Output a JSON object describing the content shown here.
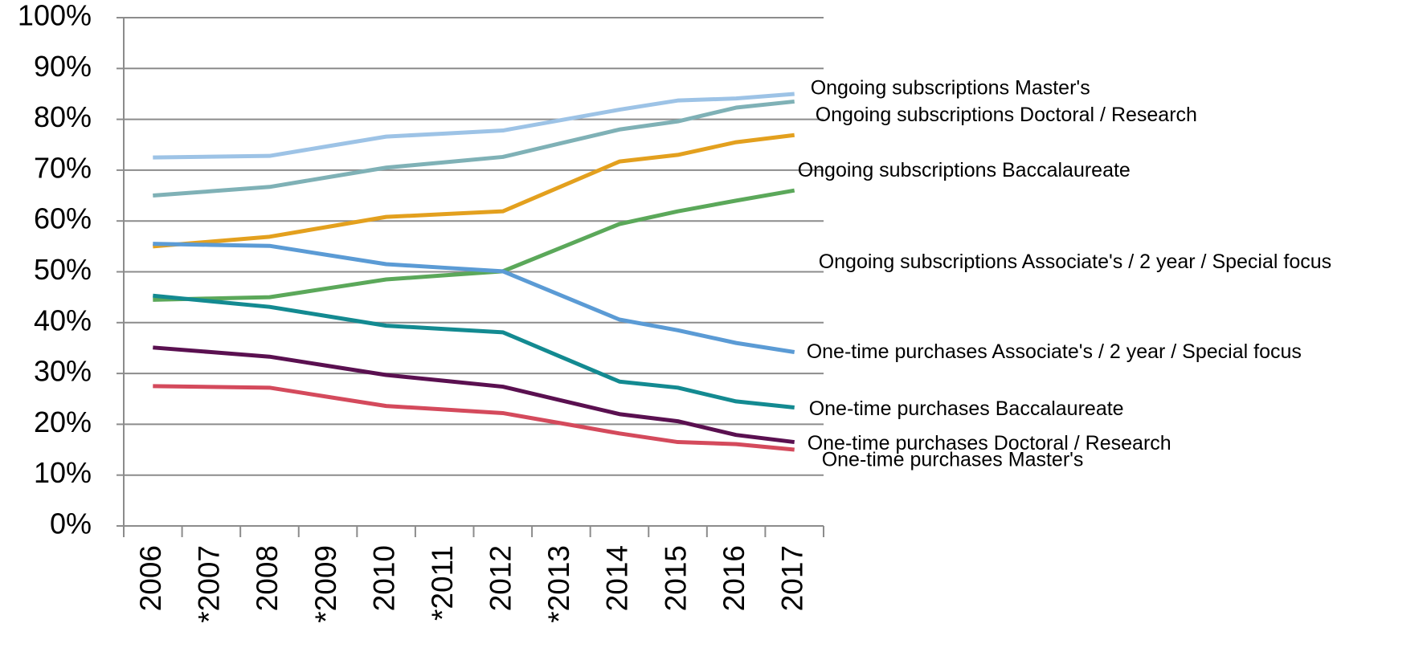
{
  "chart_data": {
    "type": "line",
    "categories": [
      "2006",
      "*2007",
      "2008",
      "*2009",
      "2010",
      "*2011",
      "2012",
      "*2013",
      "2014",
      "2015",
      "2016",
      "2017"
    ],
    "series": [
      {
        "name": "Ongoing subscriptions Master's",
        "color": "#9dc3e6",
        "values": [
          72.5,
          72.65,
          72.8,
          74.7,
          76.6,
          77.2,
          77.8,
          79.85,
          81.9,
          83.7,
          84.1,
          85
        ]
      },
      {
        "name": "Ongoing subscriptions Doctoral / Research",
        "color": "#7fb1b6",
        "values": [
          65,
          65.85,
          66.7,
          68.6,
          70.5,
          71.55,
          72.6,
          75.3,
          78,
          79.6,
          82.3,
          83.5
        ]
      },
      {
        "name": "Ongoing subscriptions Baccalaureate",
        "color": "#e3a01e",
        "values": [
          55,
          55.95,
          56.9,
          58.85,
          60.8,
          61.35,
          61.9,
          66.8,
          71.7,
          73,
          75.5,
          76.9
        ]
      },
      {
        "name": "Ongoing subscriptions Associate's / 2 year / Special focus",
        "color": "#5ba85a",
        "values": [
          44.5,
          44.75,
          45,
          46.75,
          48.5,
          49.3,
          50.1,
          54.75,
          59.4,
          61.9,
          64,
          66
        ]
      },
      {
        "name": "One-time purchases Associate's / 2 year / Special focus",
        "color": "#5b9bd5",
        "values": [
          55.5,
          55.3,
          55.1,
          53.3,
          51.5,
          50.8,
          50.1,
          45.35,
          40.6,
          38.5,
          36,
          34.2
        ]
      },
      {
        "name": "One-time purchases Baccalaureate",
        "color": "#138a91",
        "values": [
          45.3,
          44.2,
          43.1,
          41.25,
          39.4,
          38.75,
          38.1,
          33.25,
          28.4,
          27.2,
          24.5,
          23.3
        ]
      },
      {
        "name": "One-time purchases Doctoral / Research",
        "color": "#5a1050",
        "values": [
          35.1,
          34.2,
          33.3,
          31.5,
          29.7,
          28.55,
          27.4,
          24.7,
          22,
          20.6,
          17.9,
          16.5
        ]
      },
      {
        "name": "One-time purchases Master's",
        "color": "#d44a5c",
        "values": [
          27.5,
          27.35,
          27.2,
          25.4,
          23.6,
          22.9,
          22.2,
          20.2,
          18.2,
          16.5,
          16.1,
          15
        ]
      }
    ],
    "ylim": [
      0,
      100
    ],
    "yticks": [
      {
        "value": 0,
        "label": "0%"
      },
      {
        "value": 10,
        "label": "10%"
      },
      {
        "value": 20,
        "label": "20%"
      },
      {
        "value": 30,
        "label": "30%"
      },
      {
        "value": 40,
        "label": "40%"
      },
      {
        "value": 50,
        "label": "50%"
      },
      {
        "value": 60,
        "label": "60%"
      },
      {
        "value": 70,
        "label": "70%"
      },
      {
        "value": 80,
        "label": "80%"
      },
      {
        "value": 90,
        "label": "90%"
      },
      {
        "value": 100,
        "label": "100%"
      }
    ],
    "grid": true
  }
}
